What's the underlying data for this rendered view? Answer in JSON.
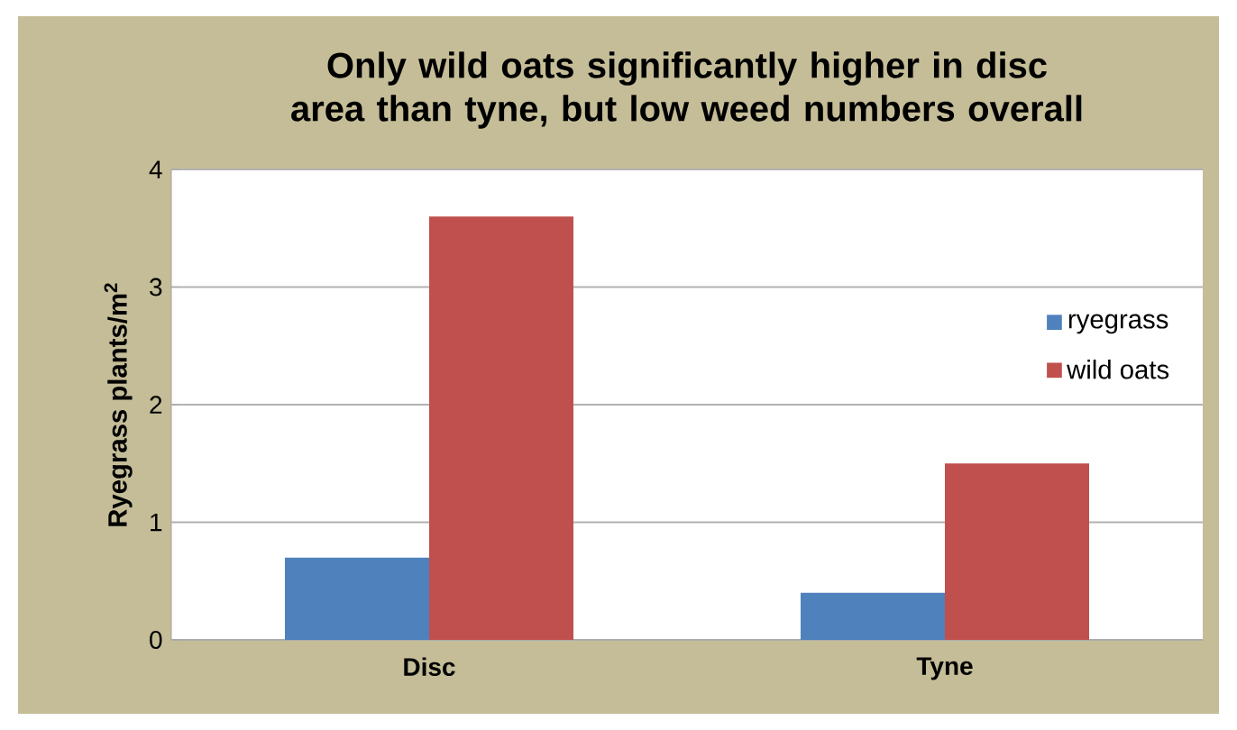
{
  "chart_data": {
    "type": "bar",
    "title": "Only wild oats significantly higher in disc area than tyne, but low weed numbers overall",
    "ylabel": "Ryegrass plants/m$^{2}$",
    "categories": [
      "Disc",
      "Tyne"
    ],
    "series": [
      {
        "name": "ryegrass",
        "color": "#4f81bd",
        "values": [
          0.7,
          0.4
        ]
      },
      {
        "name": "wild oats",
        "color": "#c0504d",
        "values": [
          3.6,
          1.5
        ]
      }
    ],
    "ylim": [
      0,
      4
    ],
    "yticks": [
      0,
      1,
      2,
      3,
      4
    ],
    "grid": "y",
    "legend": "right"
  }
}
